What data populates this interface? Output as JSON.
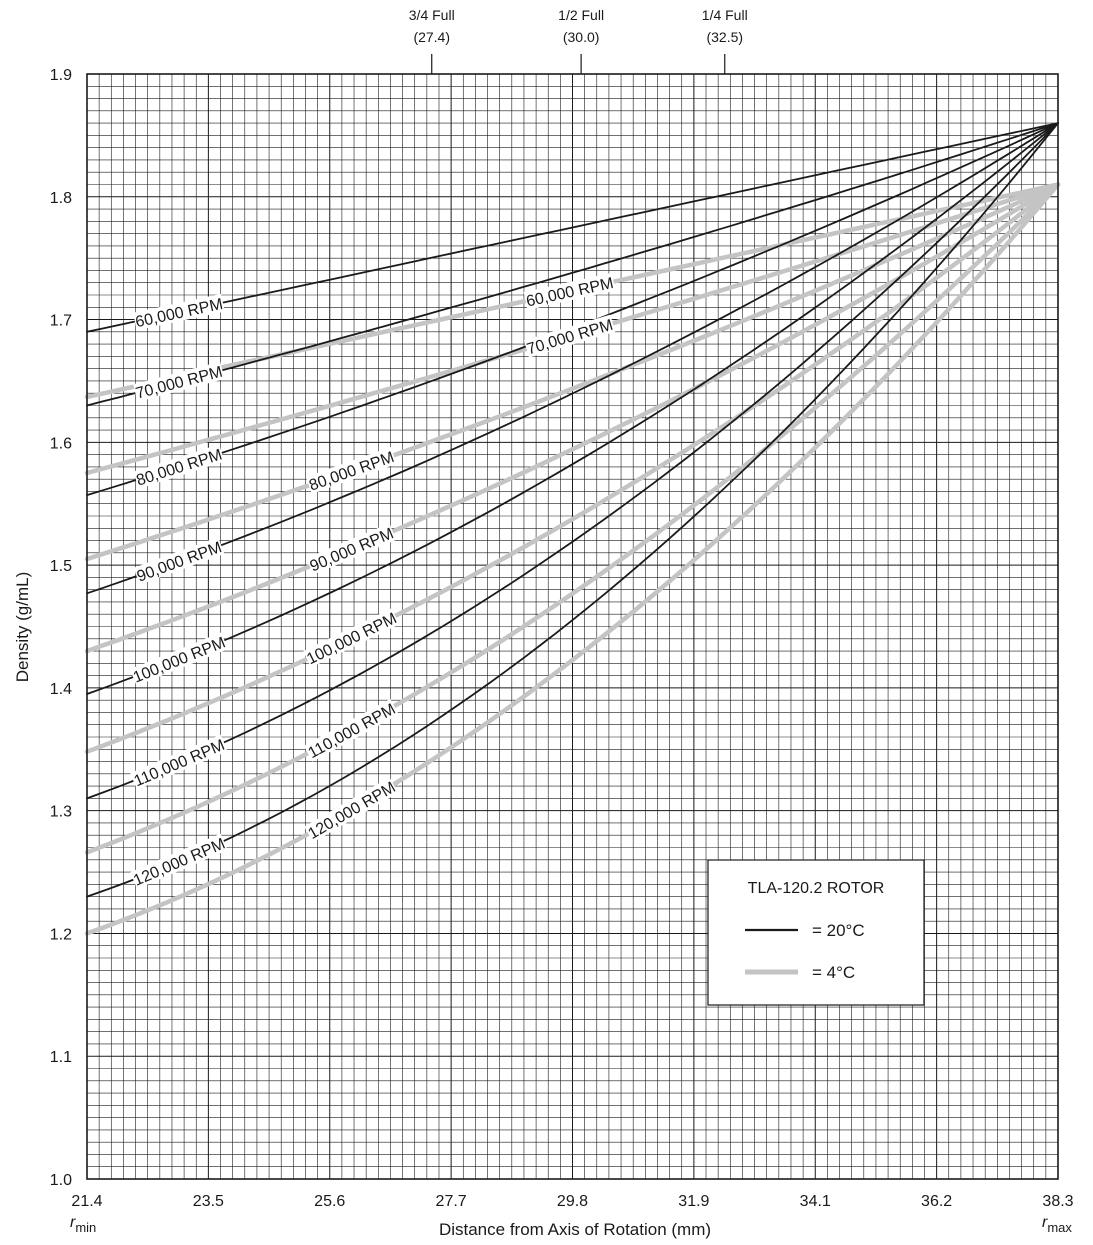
{
  "chart_data": {
    "type": "line",
    "xlabel": "Distance from Axis of Rotation (mm)",
    "ylabel": "Density (g/mL)",
    "xlim": [
      21.4,
      38.3
    ],
    "ylim": [
      1.0,
      1.9
    ],
    "x_ticks": [
      "21.4",
      "23.5",
      "25.6",
      "27.7",
      "29.8",
      "31.9",
      "34.1",
      "36.2",
      "38.3"
    ],
    "y_ticks": [
      "1.9",
      "1.8",
      "1.7",
      "1.6",
      "1.5",
      "1.4",
      "1.3",
      "1.2",
      "1.1",
      "1.0"
    ],
    "r_min_label": {
      "r": "r",
      "sub": "min"
    },
    "r_max_label": {
      "r": "r",
      "sub": "max"
    },
    "grid": true,
    "fill_markers": [
      {
        "label": "3/4 Full",
        "value_text": "(27.4)",
        "x": 27.4
      },
      {
        "label": "1/2 Full",
        "value_text": "(30.0)",
        "x": 30.0
      },
      {
        "label": "1/4 Full",
        "value_text": "(32.5)",
        "x": 32.5
      }
    ],
    "legend": {
      "title": "TLA-120.2 ROTOR",
      "placement": "lower-right",
      "entries": [
        {
          "text": "=  20°C",
          "color": "#1a1a1a"
        },
        {
          "text": "=  4°C",
          "color": "#c4c4c4"
        }
      ]
    },
    "series": [
      {
        "temp": "20°C",
        "label": "60,000 RPM",
        "color": "#1a1a1a",
        "y_min": 1.69,
        "y_max": 1.86,
        "k": 0.0,
        "label_x": 23.0
      },
      {
        "temp": "20°C",
        "label": "70,000 RPM",
        "color": "#1a1a1a",
        "y_min": 1.63,
        "y_max": 1.86,
        "k": 0.04,
        "label_x": 23.0
      },
      {
        "temp": "20°C",
        "label": "80,000 RPM",
        "color": "#1a1a1a",
        "y_min": 1.557,
        "y_max": 1.86,
        "k": 0.07,
        "label_x": 23.0
      },
      {
        "temp": "20°C",
        "label": "90,000 RPM",
        "color": "#1a1a1a",
        "y_min": 1.477,
        "y_max": 1.86,
        "k": 0.1,
        "label_x": 23.0
      },
      {
        "temp": "20°C",
        "label": "100,000 RPM",
        "color": "#1a1a1a",
        "y_min": 1.395,
        "y_max": 1.86,
        "k": 0.13,
        "label_x": 23.0
      },
      {
        "temp": "20°C",
        "label": "110,000 RPM",
        "color": "#1a1a1a",
        "y_min": 1.31,
        "y_max": 1.86,
        "k": 0.16,
        "label_x": 23.0
      },
      {
        "temp": "20°C",
        "label": "120,000 RPM",
        "color": "#1a1a1a",
        "y_min": 1.23,
        "y_max": 1.86,
        "k": 0.19,
        "label_x": 23.0
      },
      {
        "temp": "4°C",
        "label": "60,000 RPM",
        "color": "#c4c4c4",
        "y_min": 1.637,
        "y_max": 1.81,
        "k": 0.0,
        "label_x": 29.8
      },
      {
        "temp": "4°C",
        "label": "70,000 RPM",
        "color": "#c4c4c4",
        "y_min": 1.575,
        "y_max": 1.81,
        "k": 0.03,
        "label_x": 29.8
      },
      {
        "temp": "4°C",
        "label": "80,000 RPM",
        "color": "#c4c4c4",
        "y_min": 1.505,
        "y_max": 1.81,
        "k": 0.06,
        "label_x": 26.0
      },
      {
        "temp": "4°C",
        "label": "90,000 RPM",
        "color": "#c4c4c4",
        "y_min": 1.43,
        "y_max": 1.81,
        "k": 0.09,
        "label_x": 26.0
      },
      {
        "temp": "4°C",
        "label": "100,000 RPM",
        "color": "#c4c4c4",
        "y_min": 1.348,
        "y_max": 1.81,
        "k": 0.12,
        "label_x": 26.0
      },
      {
        "temp": "4°C",
        "label": "110,000 RPM",
        "color": "#c4c4c4",
        "y_min": 1.266,
        "y_max": 1.81,
        "k": 0.15,
        "label_x": 26.0
      },
      {
        "temp": "4°C",
        "label": "120,000 RPM",
        "color": "#c4c4c4",
        "y_min": 1.2,
        "y_max": 1.81,
        "k": 0.18,
        "label_x": 26.0
      }
    ]
  }
}
